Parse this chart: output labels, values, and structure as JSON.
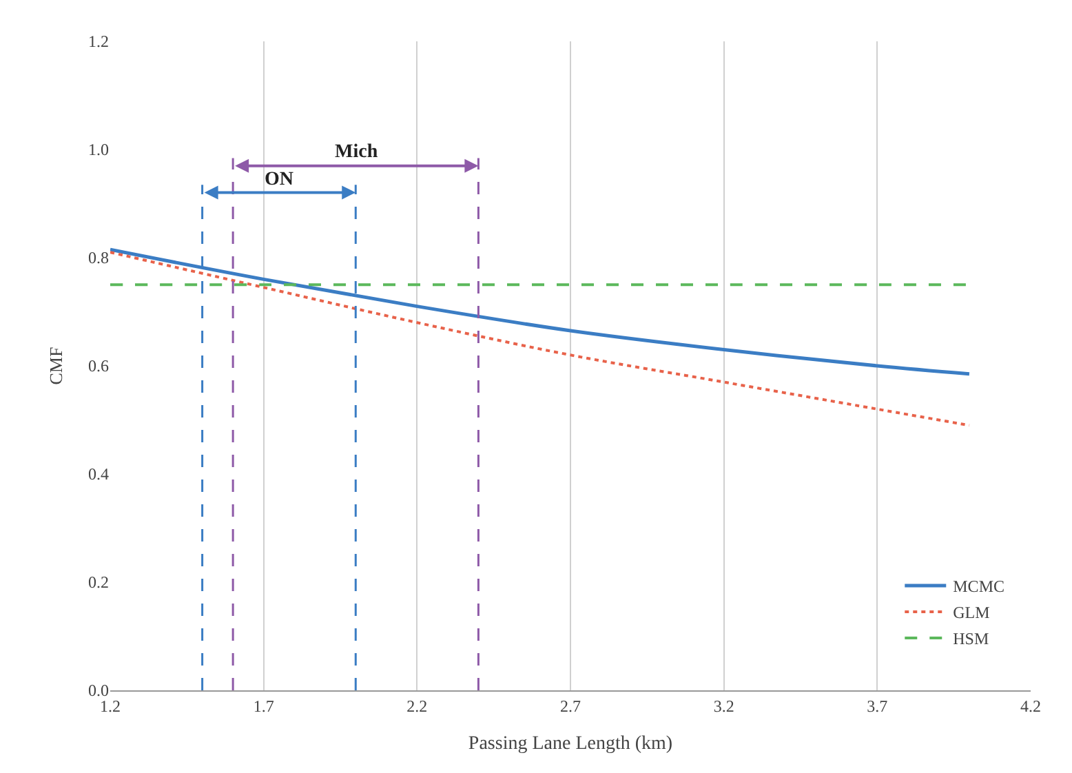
{
  "chart_data": {
    "type": "line",
    "xlabel": "Passing Lane Length (km)",
    "ylabel": "CMF",
    "x": [
      1.2,
      1.7,
      2.2,
      2.7,
      3.2,
      3.7,
      4.0
    ],
    "series": [
      {
        "name": "MCMC",
        "color": "#3b7dc4",
        "line_style": "solid",
        "values": [
          0.815,
          0.76,
          0.71,
          0.665,
          0.63,
          0.6,
          0.585
        ]
      },
      {
        "name": "GLM",
        "color": "#e8624a",
        "line_style": "dotted",
        "values": [
          0.81,
          0.745,
          0.68,
          0.62,
          0.57,
          0.52,
          0.49
        ]
      },
      {
        "name": "HSM",
        "color": "#5cb85c",
        "line_style": "dashed",
        "values": [
          0.75,
          0.75,
          0.75,
          0.75,
          0.75,
          0.75,
          0.75
        ]
      }
    ],
    "ref_lines": [
      {
        "axis": "x",
        "value": 1.5,
        "color": "#3b7dc4",
        "line_style": "dashed"
      },
      {
        "axis": "x",
        "value": 2.0,
        "color": "#3b7dc4",
        "line_style": "dashed"
      },
      {
        "axis": "x",
        "value": 1.6,
        "color": "#8e5aa8",
        "line_style": "dashed"
      },
      {
        "axis": "x",
        "value": 2.4,
        "color": "#8e5aa8",
        "line_style": "dashed"
      }
    ],
    "annotations": [
      "ON",
      "Mich"
    ],
    "xlim": [
      1.2,
      4.2
    ],
    "xticks": [
      1.2,
      1.7,
      2.2,
      2.7,
      3.2,
      3.7,
      4.2
    ],
    "ylim": [
      0,
      1.2
    ],
    "yticks": [
      {
        "value": 0,
        "label": "0.0"
      },
      0.2,
      0.4,
      0.6,
      0.8,
      {
        "value": 1,
        "label": "1.0"
      },
      1.2
    ],
    "grid": "x",
    "legend": "bottom right",
    "marker": "none"
  }
}
